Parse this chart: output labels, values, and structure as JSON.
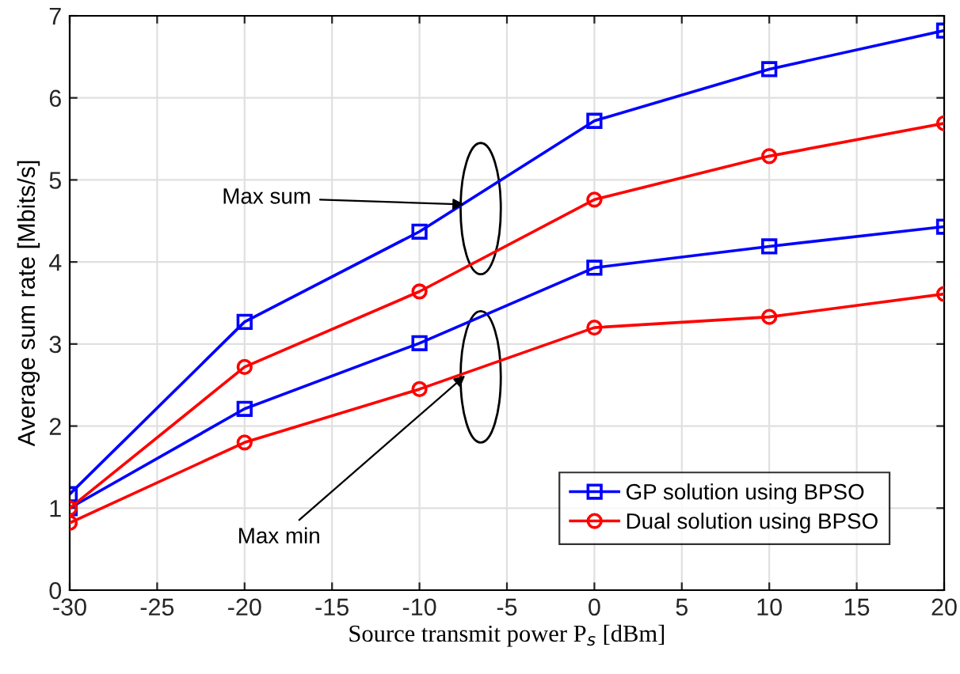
{
  "chart_data": {
    "type": "line",
    "xlabel": "Source transmit power P$_{s}$ [dBm]",
    "ylabel": "Average sum rate [Mbits/s]",
    "x": [
      -30,
      -20,
      -10,
      0,
      10,
      20
    ],
    "series": [
      {
        "name": "GP solution using BPSO",
        "color": "#0000ff",
        "marker": "square",
        "values": [
          1.17,
          3.27,
          4.37,
          5.72,
          6.35,
          6.82
        ]
      },
      {
        "name": "Dual solution using BPSO",
        "color": "#ff0000",
        "marker": "circle",
        "values": [
          1.0,
          2.72,
          3.64,
          4.76,
          5.29,
          5.69
        ]
      },
      {
        "color": "#0000ff",
        "marker": "square",
        "values": [
          1.0,
          2.21,
          3.01,
          3.93,
          4.19,
          4.43
        ]
      },
      {
        "color": "#ff0000",
        "marker": "circle",
        "values": [
          0.82,
          1.8,
          2.45,
          3.2,
          3.33,
          3.61
        ]
      }
    ],
    "annotations": [
      {
        "text": "Max sum",
        "x": -7.2,
        "y": 4.7
      },
      {
        "text": "Max min",
        "x": -7.2,
        "y": 2.65
      }
    ],
    "xlim": [
      -30,
      20
    ],
    "xticks": [
      -30,
      -25,
      -20,
      -15,
      -10,
      -5,
      0,
      5,
      10,
      15,
      20
    ],
    "ylim": [
      0,
      7
    ],
    "yticks": [
      0,
      1,
      2,
      3,
      4,
      5,
      6,
      7
    ],
    "grid": true,
    "legend": "bottom right",
    "line_style": "solid"
  }
}
